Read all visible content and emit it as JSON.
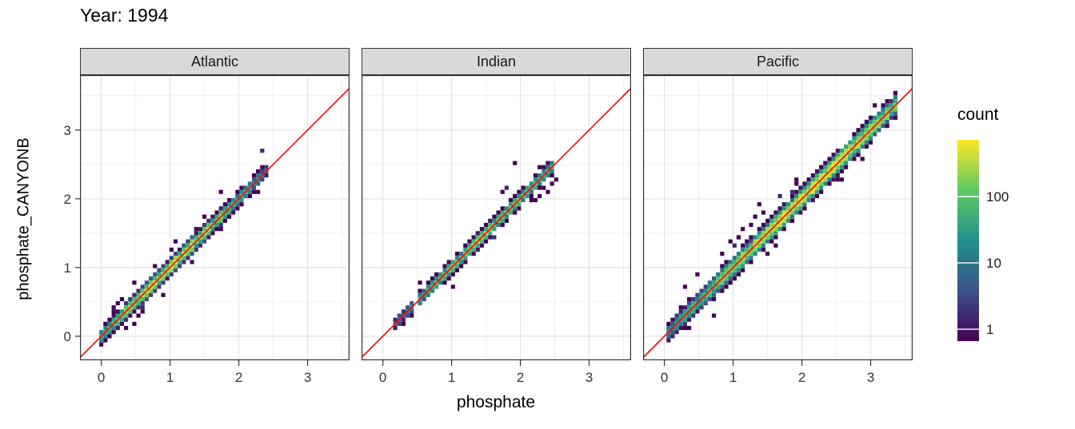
{
  "chart_data": {
    "type": "heatmap",
    "title": "Year: 1994",
    "xlabel": "phosphate",
    "ylabel": "phosphate_CANYONB",
    "x_ticks": [
      0,
      1,
      2,
      3
    ],
    "y_ticks": [
      0,
      1,
      2,
      3
    ],
    "xlim": [
      -0.31,
      3.61
    ],
    "ylim": [
      -0.35,
      3.8
    ],
    "grid": true,
    "bin_size": 0.06,
    "identity_line": {
      "slope": 1,
      "intercept": 0
    },
    "colors": {
      "identity_line": "#FF0000",
      "strip_bg": "#D9D9D9",
      "panel_border": "#333333",
      "grid_major": "#E2E2E2",
      "grid_minor": "#F0F0F0",
      "axis_text": "#333333"
    },
    "legend": {
      "title": "count",
      "ticks": [
        1,
        10,
        100
      ],
      "scale": "log10",
      "bar_min": 0.66,
      "bar_max": 720,
      "color_scale_max": 300,
      "palette": [
        "#440154",
        "#3b528b",
        "#21918c",
        "#5ec962",
        "#fde725"
      ],
      "position": "right"
    },
    "facets": [
      {
        "label": "Atlantic",
        "seed": 11,
        "segments": [
          [
            0.02,
            2.45
          ]
        ],
        "peak": 1.05,
        "sigma": 0.55,
        "max_count": 200,
        "spread": 1.1,
        "scatter_prob": 0.07,
        "outliers": [
          [
            0.25,
            0.5
          ],
          [
            0.3,
            0.55
          ],
          [
            0.45,
            0.2
          ],
          [
            0.5,
            0.75
          ],
          [
            0.9,
            0.6
          ],
          [
            0.35,
            0.12
          ],
          [
            0.2,
            0.42
          ],
          [
            1.3,
            1.05
          ],
          [
            2.3,
            2.1
          ],
          [
            0.6,
            0.35
          ],
          [
            0.75,
            1.0
          ],
          [
            1.05,
            1.35
          ],
          [
            0.15,
            0.35
          ],
          [
            1.75,
            1.55
          ]
        ]
      },
      {
        "label": "Indian",
        "seed": 22,
        "segments": [
          [
            0.15,
            0.4
          ],
          [
            0.55,
            2.5
          ]
        ],
        "peak": 1.55,
        "sigma": 0.6,
        "max_count": 110,
        "spread": 1.0,
        "scatter_prob": 0.05,
        "outliers": [
          [
            2.2,
            2.0
          ],
          [
            2.3,
            2.05
          ],
          [
            2.4,
            2.1
          ],
          [
            2.45,
            2.2
          ],
          [
            2.35,
            2.15
          ],
          [
            1.9,
            2.5
          ],
          [
            2.5,
            2.3
          ],
          [
            2.15,
            1.95
          ],
          [
            1.75,
            2.1
          ],
          [
            2.25,
            2.45
          ]
        ]
      },
      {
        "label": "Pacific",
        "seed": 33,
        "segments": [
          [
            0.05,
            3.35
          ]
        ],
        "peak": 2.1,
        "sigma": 0.85,
        "max_count": 250,
        "spread": 1.4,
        "scatter_prob": 0.13,
        "outliers": [
          [
            1.15,
            1.55
          ],
          [
            1.25,
            1.6
          ],
          [
            1.3,
            1.75
          ],
          [
            1.45,
            1.8
          ],
          [
            1.1,
            1.45
          ],
          [
            0.85,
            1.2
          ],
          [
            1.5,
            1.2
          ],
          [
            1.6,
            1.3
          ],
          [
            0.3,
            0.7
          ],
          [
            0.5,
            0.9
          ],
          [
            2.6,
            2.3
          ],
          [
            2.9,
            2.6
          ],
          [
            1.9,
            2.25
          ],
          [
            0.7,
            0.3
          ],
          [
            1.35,
            1.9
          ],
          [
            0.95,
            1.35
          ]
        ]
      }
    ]
  }
}
